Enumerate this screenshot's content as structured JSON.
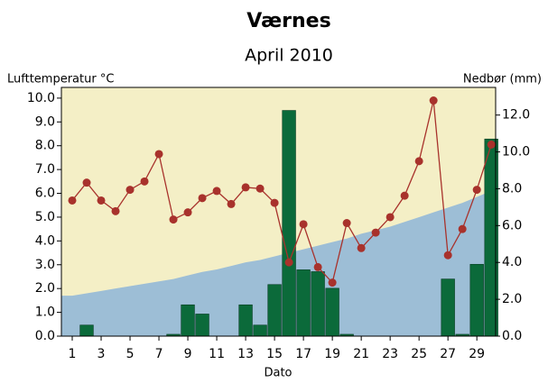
{
  "chart_data": {
    "type": "combo",
    "title": "Værnes",
    "subtitle": "April 2010",
    "y_label": "Lufttemperatur °C",
    "y2_label": "Nedbør (mm)",
    "x_label": "Dato",
    "x": [
      1,
      2,
      3,
      4,
      5,
      6,
      7,
      8,
      9,
      10,
      11,
      12,
      13,
      14,
      15,
      16,
      17,
      18,
      19,
      20,
      21,
      22,
      23,
      24,
      25,
      26,
      27,
      28,
      29,
      30
    ],
    "xlim": [
      0.25,
      30.3
    ],
    "xticks": [
      1,
      3,
      5,
      7,
      9,
      11,
      13,
      15,
      17,
      19,
      21,
      23,
      25,
      27,
      29
    ],
    "ylim": [
      0,
      10.45
    ],
    "yticks": [
      {
        "value": 0,
        "label": "0.0"
      },
      {
        "value": 1,
        "label": "1.0"
      },
      {
        "value": 2,
        "label": "2.0"
      },
      {
        "value": 3,
        "label": "3.0"
      },
      {
        "value": 4,
        "label": "4.0"
      },
      {
        "value": 5,
        "label": "5.0"
      },
      {
        "value": 6,
        "label": "6.0"
      },
      {
        "value": 7,
        "label": "7.0"
      },
      {
        "value": 8,
        "label": "8.0"
      },
      {
        "value": 9,
        "label": "9.0"
      },
      {
        "value": 10,
        "label": "10.0"
      }
    ],
    "y2lim": [
      0,
      13.5
    ],
    "y2ticks": [
      {
        "value": 0,
        "label": "0.0"
      },
      {
        "value": 2,
        "label": "2.0"
      },
      {
        "value": 4,
        "label": "4.0"
      },
      {
        "value": 6,
        "label": "6.0"
      },
      {
        "value": 8,
        "label": "8.0"
      },
      {
        "value": 10,
        "label": "10.0"
      },
      {
        "value": 12,
        "label": "12.0"
      }
    ],
    "background": "#f4efc6",
    "series": [
      {
        "type": "area",
        "color": "#9dbed6",
        "values": [
          1.7,
          1.8,
          1.9,
          2.0,
          2.1,
          2.2,
          2.3,
          2.4,
          2.55,
          2.7,
          2.8,
          2.95,
          3.1,
          3.2,
          3.35,
          3.5,
          3.65,
          3.8,
          3.95,
          4.1,
          4.3,
          4.45,
          4.6,
          4.8,
          5.0,
          5.2,
          5.4,
          5.6,
          5.85,
          6.1
        ]
      },
      {
        "type": "bar",
        "axis": "y2",
        "color": "#0b6a3a",
        "values": [
          0,
          0.6,
          0,
          0,
          0,
          0,
          0,
          0.1,
          1.7,
          1.2,
          0,
          0,
          1.7,
          0.6,
          2.8,
          12.25,
          3.6,
          3.5,
          2.6,
          0.1,
          0,
          0,
          0,
          0,
          0,
          0,
          3.1,
          0.1,
          3.9,
          10.7
        ]
      },
      {
        "type": "line",
        "color": "#a8322c",
        "values": [
          5.7,
          6.45,
          5.7,
          5.25,
          6.15,
          6.5,
          7.65,
          4.9,
          5.2,
          5.8,
          6.1,
          5.55,
          6.25,
          6.2,
          5.6,
          3.1,
          4.7,
          2.9,
          2.25,
          4.75,
          3.7,
          4.35,
          5.0,
          5.9,
          7.35,
          9.9,
          3.4,
          4.5,
          6.15,
          8.05
        ]
      }
    ]
  }
}
